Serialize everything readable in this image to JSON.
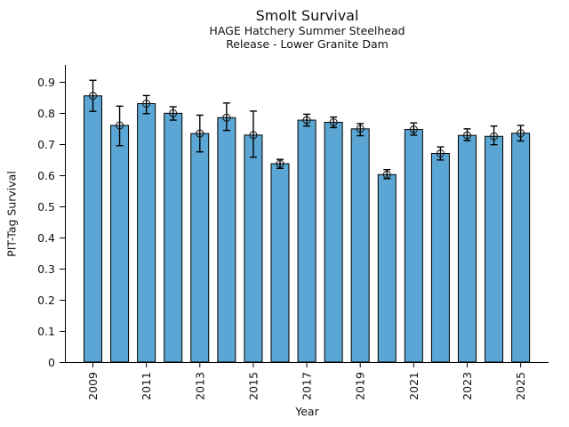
{
  "chart_data": {
    "type": "bar",
    "title": "Smolt Survival",
    "subtitle_line1": "HAGE Hatchery Summer Steelhead",
    "subtitle_line2": "Release - Lower Granite Dam",
    "xlabel": "Year",
    "ylabel": "PIT-Tag Survival",
    "categories": [
      2009,
      2010,
      2011,
      2012,
      2013,
      2014,
      2015,
      2016,
      2017,
      2018,
      2019,
      2020,
      2021,
      2022,
      2023,
      2024,
      2025
    ],
    "series": [
      {
        "name": "PIT-Tag Survival",
        "values": [
          0.855,
          0.76,
          0.83,
          0.799,
          0.734,
          0.785,
          0.729,
          0.637,
          0.777,
          0.77,
          0.749,
          0.602,
          0.747,
          0.67,
          0.728,
          0.725,
          0.735
        ],
        "error_low": [
          0.805,
          0.695,
          0.798,
          0.777,
          0.675,
          0.744,
          0.658,
          0.622,
          0.758,
          0.753,
          0.727,
          0.589,
          0.729,
          0.649,
          0.711,
          0.698,
          0.71
        ],
        "error_high": [
          0.905,
          0.822,
          0.856,
          0.82,
          0.793,
          0.832,
          0.806,
          0.651,
          0.796,
          0.787,
          0.766,
          0.618,
          0.768,
          0.691,
          0.749,
          0.758,
          0.76
        ]
      }
    ],
    "ylim": [
      0,
      0.95
    ],
    "yticks": [
      0,
      0.1,
      0.2,
      0.3,
      0.4,
      0.5,
      0.6,
      0.7,
      0.8,
      0.9
    ],
    "ytick_labels": [
      "0",
      "0.1",
      "0.2",
      "0.3",
      "0.4",
      "0.5",
      "0.6",
      "0.7",
      "0.8",
      "0.9"
    ],
    "xtick_labels": [
      "2009",
      "2011",
      "2013",
      "2015",
      "2017",
      "2019",
      "2021",
      "2023",
      "2025"
    ],
    "xtick_label_rotation_deg": 90,
    "grid": false,
    "legend_position": "none",
    "marker": "open-circle",
    "error_caps": true,
    "colors": {
      "bar_fill": "#5ba6d4",
      "bar_edge": "#000000",
      "error_bar": "#000000",
      "marker_edge": "#1a1a1a",
      "axis": "#000000",
      "text": "#111111",
      "background": "#ffffff"
    }
  }
}
